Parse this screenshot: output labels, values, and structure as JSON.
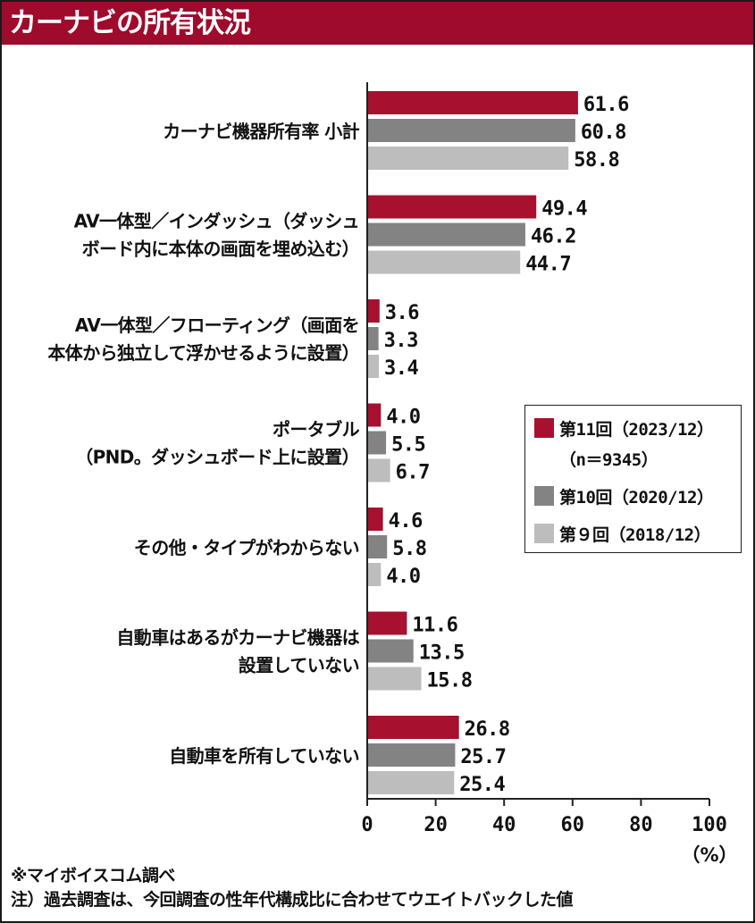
{
  "title": "カーナビの所有状況",
  "notes": [
    "※マイボイスコム調べ",
    "注）過去調査は、今回調査の性年代構成比に合わせてウエイトバックした値"
  ],
  "colors": {
    "accent": "#9e0b2c",
    "series": [
      "#a8102f",
      "#838383",
      "#bdbdbd"
    ]
  },
  "chart_data": {
    "type": "bar",
    "orientation": "horizontal",
    "categories": [
      [
        "カーナビ機器所有率 小計"
      ],
      [
        "AV一体型／インダッシュ（ダッシュ",
        "ボード内に本体の画面を埋め込む）"
      ],
      [
        "AV一体型／フローティング（画面を",
        "本体から独立して浮かせるように設置）"
      ],
      [
        "ポータブル",
        "（PND。ダッシュボード上に設置）"
      ],
      [
        "その他・タイプがわからない"
      ],
      [
        "自動車はあるがカーナビ機器は",
        "設置していない"
      ],
      [
        "自動車を所有していない"
      ]
    ],
    "series": [
      {
        "name": "第11回（2023/12）",
        "subname": "（n＝9345）",
        "values": [
          61.6,
          49.4,
          3.6,
          4.0,
          4.6,
          11.6,
          26.8
        ]
      },
      {
        "name": "第10回（2020/12）",
        "values": [
          60.8,
          46.2,
          3.3,
          5.5,
          5.8,
          13.5,
          25.7
        ]
      },
      {
        "name": "第９回（2018/12）",
        "values": [
          58.8,
          44.7,
          3.4,
          6.7,
          4.0,
          15.8,
          25.4
        ]
      }
    ],
    "xlim": [
      0,
      100
    ],
    "xticks": [
      "0",
      "20",
      "40",
      "60",
      "80",
      "100"
    ],
    "xunit": "（%）",
    "legend_position": "right-middle",
    "grid": false
  }
}
